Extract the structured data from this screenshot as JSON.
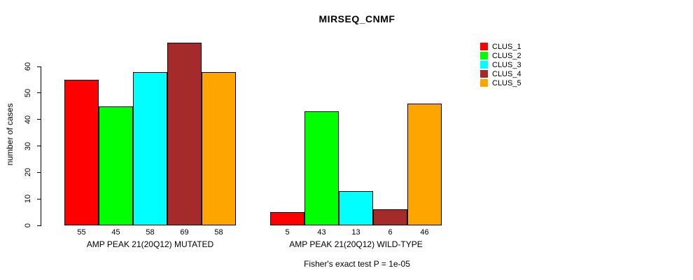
{
  "title": "MIRSEQ_CNMF",
  "ylabel": "number of cases",
  "caption": "Fisher's exact test P = 1e-05",
  "legend": {
    "items": [
      {
        "label": "CLUS_1",
        "color": "#FF0000"
      },
      {
        "label": "CLUS_2",
        "color": "#00FF00"
      },
      {
        "label": "CLUS_3",
        "color": "#00FFFF"
      },
      {
        "label": "CLUS_4",
        "color": "#A52A2A"
      },
      {
        "label": "CLUS_5",
        "color": "#FFA500"
      }
    ]
  },
  "chart_data": {
    "type": "bar",
    "title": "MIRSEQ_CNMF",
    "xlabel": "",
    "ylabel": "number of cases",
    "ylim": [
      0,
      69
    ],
    "yticks": [
      0,
      10,
      20,
      30,
      40,
      50,
      60
    ],
    "grid": false,
    "legend_position": "right",
    "series_labels": [
      "CLUS_1",
      "CLUS_2",
      "CLUS_3",
      "CLUS_4",
      "CLUS_5"
    ],
    "colors": [
      "#FF0000",
      "#00FF00",
      "#00FFFF",
      "#A52A2A",
      "#FFA500"
    ],
    "groups": [
      {
        "label": "AMP PEAK 21(20Q12) MUTATED",
        "values": [
          55,
          45,
          58,
          69,
          58
        ],
        "value_labels": [
          "55",
          "45",
          "58",
          "69",
          "58"
        ]
      },
      {
        "label": "AMP PEAK 21(20Q12) WILD-TYPE",
        "values": [
          5,
          43,
          13,
          6,
          46
        ],
        "value_labels": [
          "5",
          "43",
          "13",
          "6",
          "46"
        ]
      }
    ],
    "annotation": "Fisher's exact test P = 1e-05"
  }
}
